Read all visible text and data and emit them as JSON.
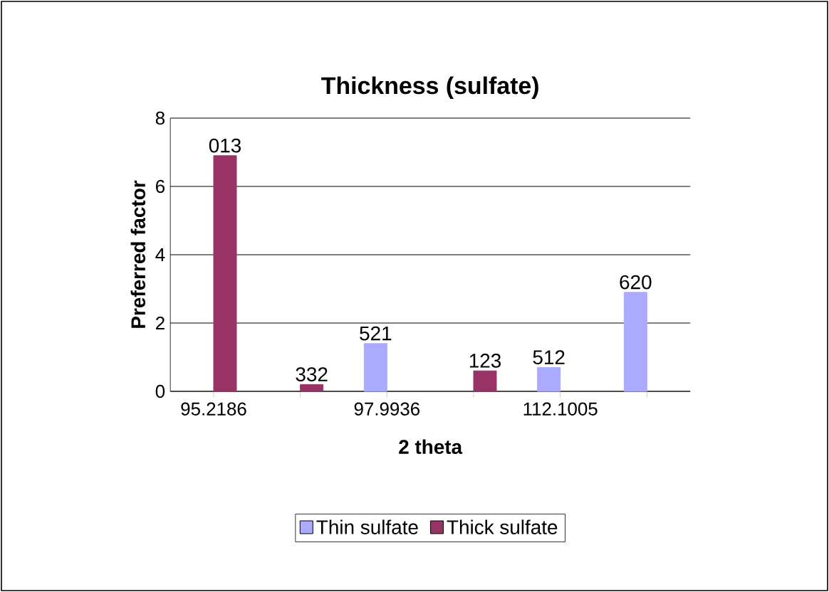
{
  "chart_data": {
    "type": "bar",
    "title": "Thickness (sulfate)",
    "xlabel": "2 theta",
    "ylabel": "Preferred factor",
    "categories": [
      "95.2186",
      null,
      "97.9936",
      null,
      "112.1005",
      null
    ],
    "series": [
      {
        "name": "Thin sulfate",
        "color": "#aaaaff",
        "values": [
          null,
          null,
          1.4,
          null,
          0.7,
          2.9
        ]
      },
      {
        "name": "Thick sulfate",
        "color": "#993366",
        "values": [
          6.9,
          0.2,
          null,
          0.6,
          null,
          null
        ]
      }
    ],
    "annotations": [
      {
        "text": "013",
        "x": "95.2186",
        "y": 6.9
      },
      {
        "text": "332",
        "y": 0.2
      },
      {
        "text": "521",
        "x": "97.9936",
        "y": 1.4
      },
      {
        "text": "123",
        "y": 0.6
      },
      {
        "text": "512",
        "x": "112.1005",
        "y": 0.7
      },
      {
        "text": "620",
        "y": 2.9
      }
    ],
    "ylim": [
      0,
      8
    ],
    "yticks": [
      0,
      2,
      4,
      6,
      8
    ],
    "grid": "y",
    "legend": "bottom"
  }
}
